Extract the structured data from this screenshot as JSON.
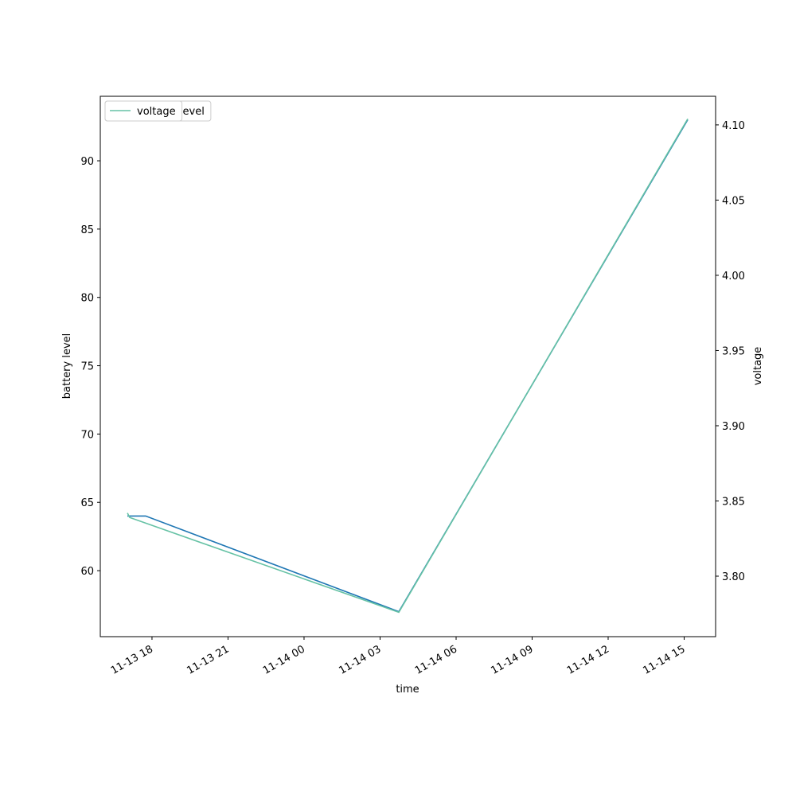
{
  "chart_data": {
    "type": "line",
    "x_label": "time",
    "y_label": "battery level",
    "y2_label": "voltage",
    "xlim": [
      15.96,
      40.24
    ],
    "xticks": [
      {
        "value": 18,
        "label": "11-13 18"
      },
      {
        "value": 21,
        "label": "11-13 21"
      },
      {
        "value": 24,
        "label": "11-14 00"
      },
      {
        "value": 27,
        "label": "11-14 03"
      },
      {
        "value": 30,
        "label": "11-14 06"
      },
      {
        "value": 33,
        "label": "11-14 09"
      },
      {
        "value": 36,
        "label": "11-14 12"
      },
      {
        "value": 39,
        "label": "11-14 15"
      }
    ],
    "ylim": [
      55.17,
      94.72
    ],
    "yticks": [
      60,
      65,
      70,
      75,
      80,
      85,
      90
    ],
    "y2lim": [
      3.7598,
      4.119
    ],
    "y2ticks": [
      {
        "value": 3.8,
        "label": "3.80"
      },
      {
        "value": 3.85,
        "label": "3.85"
      },
      {
        "value": 3.9,
        "label": "3.90"
      },
      {
        "value": 3.95,
        "label": "3.95"
      },
      {
        "value": 4.0,
        "label": "4.00"
      },
      {
        "value": 4.05,
        "label": "4.05"
      },
      {
        "value": 4.1,
        "label": "4.10"
      }
    ],
    "legend": "upper left",
    "series": [
      {
        "name": "battery_level",
        "color": "#1f77b4",
        "axis": "y",
        "x": [
          17.03,
          17.75,
          27.74,
          39.14
        ],
        "values": [
          64,
          64,
          57,
          93
        ]
      },
      {
        "name": "voltage",
        "color": "#66c2a5",
        "axis": "y2",
        "x": [
          17.03,
          17.12,
          27.74,
          39.14
        ],
        "values": [
          3.842,
          3.839,
          3.776,
          4.104
        ]
      }
    ]
  }
}
